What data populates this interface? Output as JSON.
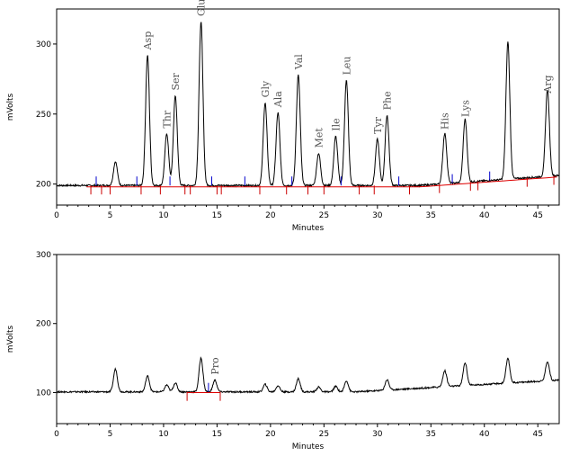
{
  "chart_data": [
    {
      "type": "line",
      "title": "",
      "xlabel": "Minutes",
      "ylabel": "mVolts",
      "xlim": [
        0,
        47
      ],
      "ylim": [
        185,
        325
      ],
      "x_ticks": [
        0,
        5,
        10,
        15,
        20,
        25,
        30,
        35,
        40,
        45
      ],
      "y_ticks": [
        200,
        250,
        300
      ],
      "baseline": 199,
      "peaks": [
        {
          "x": 5.5,
          "height": 216,
          "label": ""
        },
        {
          "x": 8.5,
          "height": 292,
          "label": "Asp"
        },
        {
          "x": 10.3,
          "height": 236,
          "label": "Thr"
        },
        {
          "x": 11.1,
          "height": 263,
          "label": "Ser"
        },
        {
          "x": 13.5,
          "height": 316,
          "label": "Glu"
        },
        {
          "x": 19.5,
          "height": 258,
          "label": "Gly"
        },
        {
          "x": 20.7,
          "height": 251,
          "label": "Ala"
        },
        {
          "x": 22.6,
          "height": 278,
          "label": "Val"
        },
        {
          "x": 24.5,
          "height": 222,
          "label": "Met"
        },
        {
          "x": 26.1,
          "height": 234,
          "label": "Ile"
        },
        {
          "x": 27.1,
          "height": 274,
          "label": "Leu"
        },
        {
          "x": 30.0,
          "height": 232,
          "label": "Tyr"
        },
        {
          "x": 30.9,
          "height": 249,
          "label": "Phe"
        },
        {
          "x": 36.3,
          "height": 235,
          "label": "His"
        },
        {
          "x": 38.2,
          "height": 244,
          "label": "Lys"
        },
        {
          "x": 42.2,
          "height": 297,
          "label": ""
        },
        {
          "x": 45.9,
          "height": 261,
          "label": "Arg"
        }
      ]
    },
    {
      "type": "line",
      "title": "",
      "xlabel": "Minutes",
      "ylabel": "mVolts",
      "xlim": [
        0,
        47
      ],
      "ylim": [
        55,
        300
      ],
      "x_ticks": [
        0,
        5,
        10,
        15,
        20,
        25,
        30,
        35,
        40,
        45
      ],
      "y_ticks": [
        100,
        200,
        300
      ],
      "baseline": 101,
      "peaks": [
        {
          "x": 5.5,
          "height": 134,
          "label": ""
        },
        {
          "x": 8.5,
          "height": 124,
          "label": ""
        },
        {
          "x": 10.3,
          "height": 111,
          "label": ""
        },
        {
          "x": 11.1,
          "height": 114,
          "label": ""
        },
        {
          "x": 13.5,
          "height": 150,
          "label": ""
        },
        {
          "x": 14.8,
          "height": 118,
          "label": "Pro"
        },
        {
          "x": 19.5,
          "height": 112,
          "label": ""
        },
        {
          "x": 20.7,
          "height": 110,
          "label": ""
        },
        {
          "x": 22.6,
          "height": 120,
          "label": ""
        },
        {
          "x": 24.5,
          "height": 108,
          "label": ""
        },
        {
          "x": 26.1,
          "height": 109,
          "label": ""
        },
        {
          "x": 27.1,
          "height": 117,
          "label": ""
        },
        {
          "x": 30.9,
          "height": 116,
          "label": ""
        },
        {
          "x": 36.3,
          "height": 124,
          "label": ""
        },
        {
          "x": 38.2,
          "height": 134,
          "label": ""
        },
        {
          "x": 42.2,
          "height": 136,
          "label": ""
        },
        {
          "x": 45.9,
          "height": 129,
          "label": ""
        }
      ]
    }
  ],
  "colors": {
    "trace": "#000000",
    "baseline": "#dd0000",
    "markers_blue": "#0000cc",
    "markers_red": "#cc0000",
    "label": "#555555"
  }
}
